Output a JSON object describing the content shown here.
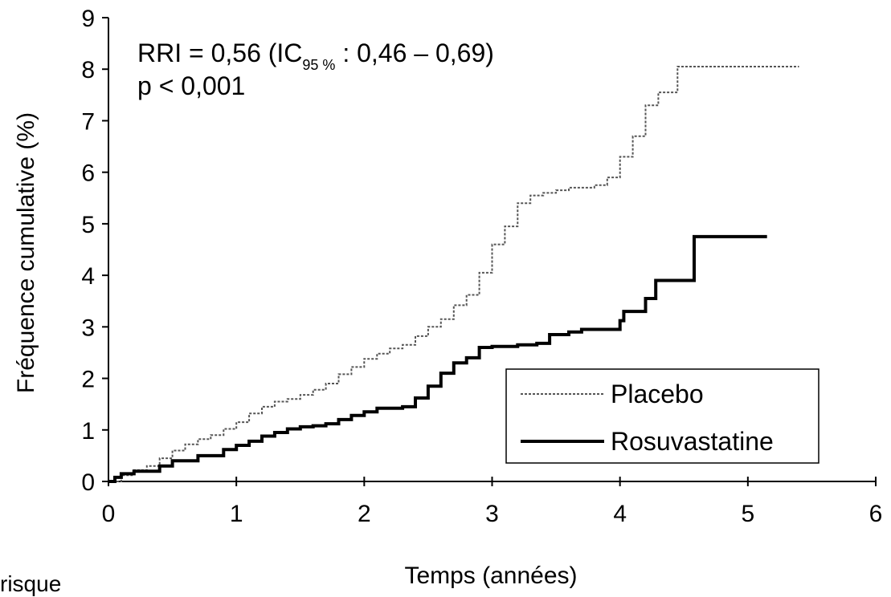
{
  "chart_data": {
    "type": "line",
    "title": "",
    "xlabel": "Temps (années)",
    "ylabel": "Fréquence cumulative (%)",
    "xlim": [
      0,
      6
    ],
    "ylim": [
      0,
      9
    ],
    "x_ticks": [
      "0",
      "1",
      "2",
      "3",
      "4",
      "5",
      "6"
    ],
    "y_ticks": [
      "0",
      "1",
      "2",
      "3",
      "4",
      "5",
      "6",
      "7",
      "8",
      "9"
    ],
    "grid": false,
    "legend_position": "bottom-right",
    "annotation": {
      "line1_main": "RRI = 0,56 (IC",
      "line1_sub": "95 %",
      "line1_rest": " : 0,46 – 0,69)",
      "line2": "p < 0,001"
    },
    "series": [
      {
        "name": "Placebo",
        "style": "dotted",
        "color": "#555555",
        "points": [
          [
            0,
            0
          ],
          [
            0.1,
            0.12
          ],
          [
            0.2,
            0.22
          ],
          [
            0.3,
            0.3
          ],
          [
            0.4,
            0.45
          ],
          [
            0.5,
            0.6
          ],
          [
            0.6,
            0.72
          ],
          [
            0.7,
            0.82
          ],
          [
            0.8,
            0.9
          ],
          [
            0.9,
            1.02
          ],
          [
            1.0,
            1.15
          ],
          [
            1.1,
            1.32
          ],
          [
            1.2,
            1.45
          ],
          [
            1.3,
            1.55
          ],
          [
            1.4,
            1.6
          ],
          [
            1.5,
            1.68
          ],
          [
            1.6,
            1.78
          ],
          [
            1.7,
            1.9
          ],
          [
            1.8,
            2.08
          ],
          [
            1.9,
            2.22
          ],
          [
            2.0,
            2.38
          ],
          [
            2.1,
            2.48
          ],
          [
            2.2,
            2.58
          ],
          [
            2.3,
            2.65
          ],
          [
            2.4,
            2.82
          ],
          [
            2.5,
            3.0
          ],
          [
            2.6,
            3.15
          ],
          [
            2.7,
            3.42
          ],
          [
            2.8,
            3.62
          ],
          [
            2.9,
            4.05
          ],
          [
            3.0,
            4.6
          ],
          [
            3.1,
            4.95
          ],
          [
            3.2,
            5.4
          ],
          [
            3.3,
            5.55
          ],
          [
            3.4,
            5.6
          ],
          [
            3.5,
            5.65
          ],
          [
            3.6,
            5.7
          ],
          [
            3.8,
            5.75
          ],
          [
            3.9,
            5.9
          ],
          [
            4.0,
            6.3
          ],
          [
            4.1,
            6.7
          ],
          [
            4.2,
            7.3
          ],
          [
            4.3,
            7.55
          ],
          [
            4.45,
            7.55
          ],
          [
            4.45,
            8.05
          ],
          [
            5.4,
            8.05
          ]
        ]
      },
      {
        "name": "Rosuvastatine",
        "style": "solid",
        "color": "#000000",
        "points": [
          [
            0,
            0
          ],
          [
            0.05,
            0.08
          ],
          [
            0.1,
            0.15
          ],
          [
            0.2,
            0.2
          ],
          [
            0.4,
            0.3
          ],
          [
            0.5,
            0.4
          ],
          [
            0.7,
            0.5
          ],
          [
            0.9,
            0.62
          ],
          [
            1.0,
            0.7
          ],
          [
            1.1,
            0.78
          ],
          [
            1.2,
            0.88
          ],
          [
            1.3,
            0.95
          ],
          [
            1.4,
            1.02
          ],
          [
            1.5,
            1.06
          ],
          [
            1.6,
            1.08
          ],
          [
            1.7,
            1.12
          ],
          [
            1.8,
            1.2
          ],
          [
            1.9,
            1.28
          ],
          [
            2.0,
            1.35
          ],
          [
            2.1,
            1.42
          ],
          [
            2.3,
            1.45
          ],
          [
            2.35,
            1.45
          ],
          [
            2.4,
            1.62
          ],
          [
            2.5,
            1.85
          ],
          [
            2.6,
            2.1
          ],
          [
            2.7,
            2.3
          ],
          [
            2.8,
            2.4
          ],
          [
            2.9,
            2.6
          ],
          [
            3.0,
            2.62
          ],
          [
            3.2,
            2.65
          ],
          [
            3.35,
            2.68
          ],
          [
            3.45,
            2.85
          ],
          [
            3.6,
            2.9
          ],
          [
            3.7,
            2.95
          ],
          [
            3.98,
            2.95
          ],
          [
            4.0,
            3.12
          ],
          [
            4.03,
            3.3
          ],
          [
            4.2,
            3.35
          ],
          [
            4.2,
            3.55
          ],
          [
            4.28,
            3.55
          ],
          [
            4.28,
            3.9
          ],
          [
            4.58,
            3.9
          ],
          [
            4.58,
            4.75
          ],
          [
            5.15,
            4.75
          ]
        ]
      }
    ]
  },
  "footer_text": "risque"
}
